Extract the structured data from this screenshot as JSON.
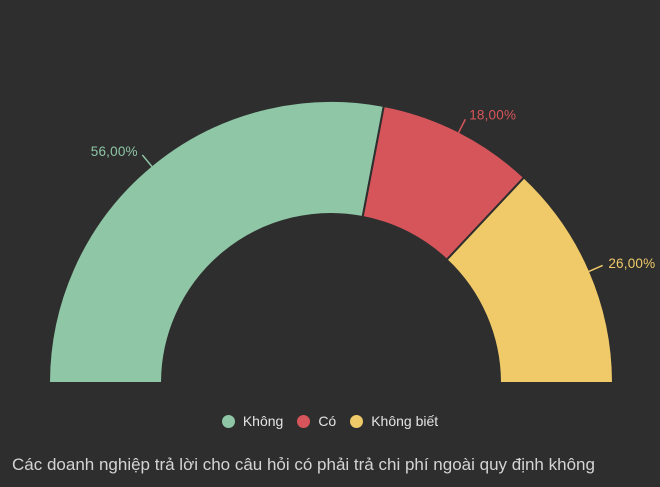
{
  "background": "#2e2e2e",
  "title": {
    "text": "Các doanh nghiệp trả lời cho câu hỏi có phải trả chi phí ngoài quy định không"
  },
  "legend": {
    "items": [
      {
        "label": "Không",
        "color": "#8ec6a6"
      },
      {
        "label": "Có",
        "color": "#d6555a"
      },
      {
        "label": "Không biết",
        "color": "#f0ca69"
      }
    ]
  },
  "chart_data": {
    "type": "pie",
    "variant": "half-donut",
    "categories": [
      "Không",
      "Có",
      "Không biết"
    ],
    "values": [
      56,
      18,
      26
    ],
    "value_labels": [
      "56,00%",
      "18,00%",
      "26,00%"
    ],
    "colors": [
      "#8ec6a6",
      "#d6555a",
      "#f0ca69"
    ],
    "slugs": [
      "khong",
      "co",
      "khong-biet"
    ],
    "title": "Các doanh nghiệp trả lời cho câu hỏi có phải trả chi phí ngoài quy định không",
    "start_angle": 180,
    "end_angle": 0,
    "inner_radius_ratio": 0.6,
    "legend_position": "bottom",
    "unit": "%"
  }
}
